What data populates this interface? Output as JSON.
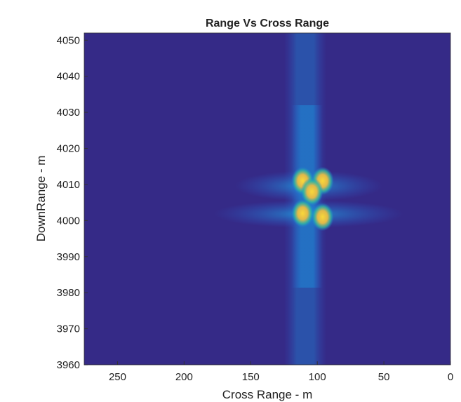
{
  "chart_data": {
    "type": "heatmap",
    "title": "Range Vs Cross Range",
    "x_label": "Cross Range - m",
    "y_label": "DownRange - m",
    "xlim": [
      275,
      0
    ],
    "ylim": [
      3960,
      4052
    ],
    "xticks": [
      250,
      200,
      150,
      100,
      50,
      0
    ],
    "yticks": [
      3960,
      3970,
      3980,
      3990,
      4000,
      4010,
      4020,
      4030,
      4040,
      4050
    ],
    "x": [
      111,
      96,
      104,
      111,
      96
    ],
    "y": [
      4011,
      4011,
      4008,
      4002,
      4001
    ],
    "background": "#352a87",
    "color": "#f9d83a"
  }
}
